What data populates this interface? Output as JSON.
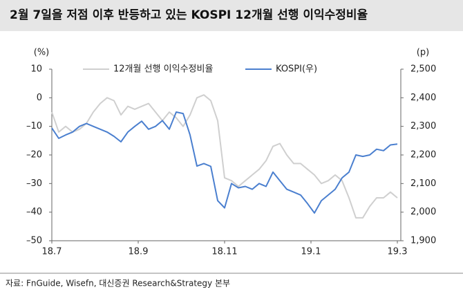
{
  "chart_data": {
    "type": "line",
    "title": "2월 7일을 저점 이후 반등하고 있는 KOSPI 12개월 선행 이익수정비율",
    "source": "자료: FnGuide, Wisefn, 대신증권 Research&Strategy 본부",
    "y_label": "(%)",
    "y2_label": "(p)",
    "x_labels": [
      "18.7",
      "18.9",
      "18.11",
      "19.1",
      "19.3"
    ],
    "ylim": [
      -50,
      10
    ],
    "yticks": [
      10,
      0,
      {
        "value": -10,
        "label": "–10"
      },
      {
        "value": -20,
        "label": "–20"
      },
      {
        "value": -30,
        "label": "–30"
      },
      {
        "value": -40,
        "label": "–40"
      },
      {
        "value": -50,
        "label": "–50"
      }
    ],
    "y2lim": [
      1900,
      2500
    ],
    "y2ticks": [
      {
        "value": 2500,
        "label": "2,500"
      },
      {
        "value": 2400,
        "label": "2,400"
      },
      {
        "value": 2300,
        "label": "2,300"
      },
      {
        "value": 2200,
        "label": "2,200"
      },
      {
        "value": 2100,
        "label": "2,100"
      },
      {
        "value": 2000,
        "label": "2,000"
      },
      {
        "value": 1900,
        "label": "1,900"
      }
    ],
    "series": [
      {
        "name": "12개월 선행 이익수정비율",
        "color": "#cfcfcf",
        "values": [
          -5,
          -12,
          -10,
          -12,
          -11,
          -9,
          -5,
          -2,
          0,
          -1,
          -6,
          -3,
          -4,
          -3,
          -2,
          -5,
          -8,
          -5,
          -7,
          -10,
          -6,
          0,
          1,
          -1,
          -8,
          -28,
          -29,
          -31,
          -29,
          -27,
          -25,
          -22,
          -17,
          -16,
          -20,
          -23,
          -23,
          -25,
          -27,
          -30,
          -29,
          -27,
          -29,
          -35,
          -42,
          -42,
          -38,
          -35,
          -35,
          -33,
          -35
        ]
      },
      {
        "name": "KOSPI(우)",
        "color": "#4a7fcf",
        "axis": "y2",
        "values": [
          2294,
          2258,
          2270,
          2280,
          2300,
          2310,
          2300,
          2290,
          2280,
          2265,
          2246,
          2280,
          2300,
          2318,
          2290,
          2300,
          2320,
          2290,
          2350,
          2345,
          2270,
          2161,
          2170,
          2160,
          2040,
          2015,
          2100,
          2085,
          2090,
          2080,
          2100,
          2090,
          2140,
          2110,
          2080,
          2070,
          2060,
          2030,
          1997,
          2040,
          2060,
          2080,
          2120,
          2140,
          2200,
          2195,
          2200,
          2220,
          2215,
          2235,
          2238
        ]
      }
    ]
  }
}
